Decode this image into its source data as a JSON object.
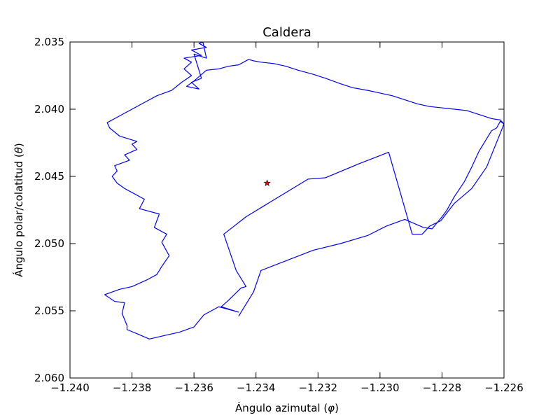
{
  "chart_data": {
    "type": "line",
    "title": "Caldera",
    "xlabel": "Ángulo azimutal (φ)",
    "xlabel_parts": {
      "prefix": "Ángulo azimutal (",
      "symbol": "φ",
      "suffix": ")"
    },
    "ylabel": "Ángulo polar/colatitud (θ)",
    "ylabel_parts": {
      "prefix": "Ángulo polar/colatitud (",
      "symbol": "θ",
      "suffix": ")"
    },
    "xlim": [
      -1.24,
      -1.226
    ],
    "ylim": [
      2.035,
      2.06
    ],
    "y_inverted": true,
    "grid": false,
    "x_ticks": [
      -1.24,
      -1.238,
      -1.236,
      -1.234,
      -1.232,
      -1.23,
      -1.228,
      -1.226
    ],
    "x_tick_labels": [
      "−1.240",
      "−1.238",
      "−1.236",
      "−1.234",
      "−1.232",
      "−1.230",
      "−1.228",
      "−1.226"
    ],
    "y_ticks": [
      2.035,
      2.04,
      2.045,
      2.05,
      2.055,
      2.06
    ],
    "y_tick_labels": [
      "2.035",
      "2.040",
      "2.045",
      "2.050",
      "2.055",
      "2.060"
    ],
    "series": [
      {
        "color": "#0000ff",
        "x": [
          -1.23456,
          -1.23408,
          -1.23384,
          -1.23216,
          -1.23128,
          -1.2304,
          -1.2298,
          -1.2292,
          -1.2286,
          -1.22832,
          -1.228,
          -1.22784,
          -1.2276,
          -1.22728,
          -1.22704,
          -1.2268,
          -1.22656,
          -1.2264,
          -1.22624,
          -1.22612,
          -1.226,
          -1.22656,
          -1.22704,
          -1.2276,
          -1.22804,
          -1.2284,
          -1.22864,
          -1.22896,
          -1.22972,
          -1.23072,
          -1.23176,
          -1.23232,
          -1.23432,
          -1.23504,
          -1.23464,
          -1.23432,
          -1.23448,
          -1.23488,
          -1.23512,
          -1.23456,
          -1.2352,
          -1.23568,
          -1.236,
          -1.23648,
          -1.23688,
          -1.23744,
          -1.23784,
          -1.23816,
          -1.23816,
          -1.23832,
          -1.23824,
          -1.23856,
          -1.23888,
          -1.2384,
          -1.238,
          -1.23752,
          -1.2372,
          -1.23704,
          -1.2368,
          -1.23704,
          -1.23688,
          -1.23728,
          -1.23712,
          -1.23776,
          -1.2376,
          -1.23792,
          -1.23824,
          -1.23848,
          -1.23864,
          -1.23848,
          -1.23856,
          -1.23808,
          -1.23824,
          -1.23784,
          -1.238,
          -1.23784,
          -1.2384,
          -1.23872,
          -1.2388,
          -1.23848,
          -1.238,
          -1.2376,
          -1.2372,
          -1.23672,
          -1.2364,
          -1.23608,
          -1.23632,
          -1.23608,
          -1.23632,
          -1.23576,
          -1.23608,
          -1.2356,
          -1.23584,
          -1.23544,
          -1.23576,
          -1.2356,
          -1.236,
          -1.23576,
          -1.23608,
          -1.23584,
          -1.23624,
          -1.236,
          -1.2356,
          -1.2352,
          -1.23488,
          -1.23456,
          -1.23424,
          -1.23408,
          -1.23384,
          -1.23344,
          -1.23304,
          -1.23264,
          -1.23216,
          -1.23176,
          -1.23128,
          -1.23088,
          -1.2304,
          -1.23,
          -1.2296,
          -1.2292,
          -1.2288,
          -1.2284,
          -1.228,
          -1.2276,
          -1.2272,
          -1.2268,
          -1.2264,
          -1.22612,
          -1.226
        ],
        "y": [
          2.0554,
          2.0536,
          2.052,
          2.0505,
          2.05,
          2.0494,
          2.0487,
          2.0482,
          2.0488,
          2.0489,
          2.048,
          2.0475,
          2.0465,
          2.0454,
          2.0443,
          2.0431,
          2.0422,
          2.0416,
          2.0414,
          2.0409,
          2.0411,
          2.0443,
          2.0459,
          2.047,
          2.0483,
          2.0487,
          2.0493,
          2.0493,
          2.0432,
          2.0441,
          2.0451,
          2.0452,
          2.048,
          2.0493,
          2.052,
          2.0532,
          2.0533,
          2.0542,
          2.0547,
          2.0551,
          2.0547,
          2.0553,
          2.0562,
          2.0566,
          2.0568,
          2.0571,
          2.0567,
          2.0564,
          2.0561,
          2.0552,
          2.0544,
          2.0543,
          2.0538,
          2.0534,
          2.0532,
          2.0527,
          2.0523,
          2.0517,
          2.0509,
          2.0499,
          2.0493,
          2.0488,
          2.0478,
          2.0474,
          2.0467,
          2.0463,
          2.0459,
          2.0455,
          2.045,
          2.0446,
          2.0442,
          2.0438,
          2.0434,
          2.043,
          2.0426,
          2.0424,
          2.042,
          2.0414,
          2.041,
          2.0406,
          2.04,
          2.0395,
          2.039,
          2.0386,
          2.038,
          2.0375,
          2.037,
          2.0365,
          2.0362,
          2.036,
          2.0356,
          2.0354,
          2.0351,
          2.0348,
          2.0345,
          2.0362,
          2.0359,
          2.0377,
          2.038,
          2.0385,
          2.0383,
          2.0379,
          2.0371,
          2.037,
          2.0368,
          2.0367,
          2.0363,
          2.0364,
          2.0365,
          2.0366,
          2.0368,
          2.0371,
          2.0374,
          2.0377,
          2.0381,
          2.0384,
          2.0386,
          2.0388,
          2.039,
          2.0393,
          2.0396,
          2.0398,
          2.0399,
          2.04,
          2.0401,
          2.0404,
          2.0407,
          2.0408,
          2.0411
        ]
      },
      {
        "type": "scatter",
        "marker": "star",
        "color": "#ff0000",
        "x": [
          -1.23364
        ],
        "y": [
          2.0455
        ]
      }
    ]
  }
}
